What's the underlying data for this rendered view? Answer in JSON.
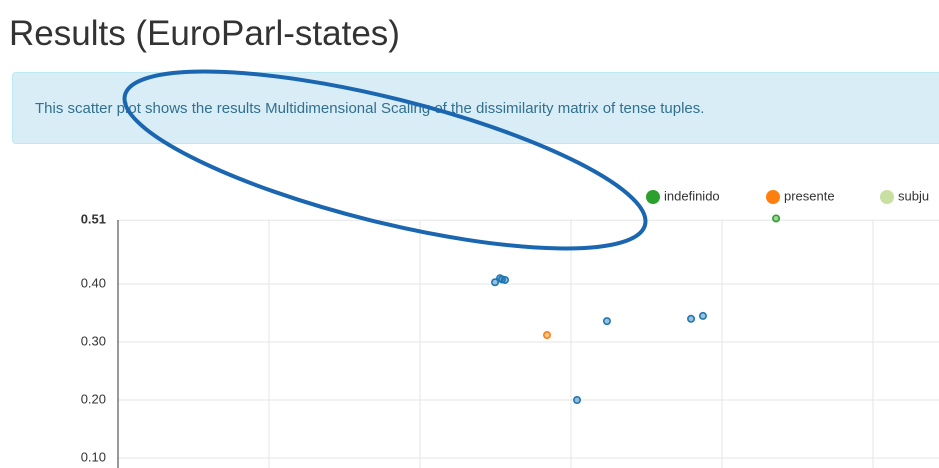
{
  "page": {
    "title": "Results (EuroParl-states)",
    "info": "This scatter plot shows the results Multidimensional Scaling of the dissimilarity matrix of tense tuples."
  },
  "chart_data": {
    "type": "scatter",
    "xlim": [
      -0.3,
      0.25
    ],
    "xticks": [
      -0.2,
      -0.1,
      0,
      0.1,
      0.2
    ],
    "ylim": [
      0.08,
      0.52
    ],
    "yticks": [
      {
        "value": 0.1,
        "label": "0.10"
      },
      {
        "value": 0.2,
        "label": "0.20"
      },
      {
        "value": 0.3,
        "label": "0.30"
      },
      {
        "value": 0.4,
        "label": "0.40"
      },
      0.51
    ],
    "grid": true,
    "legend": "top-right",
    "series": [
      {
        "color": "#1f77b4",
        "x": [
          -0.0503,
          -0.047,
          -0.0437,
          -0.0457,
          0.004,
          0.0238,
          0.0795,
          0.0874
        ],
        "values": [
          0.403,
          0.41,
          0.407,
          0.408,
          0.2,
          0.336,
          0.34,
          0.345
        ]
      },
      {
        "name": "indefinido",
        "color": "#2ca02c",
        "x": [
          0.1358
        ],
        "values": [
          0.513
        ]
      },
      {
        "name": "presente",
        "color": "#ff7f0e",
        "x": [
          -0.0159
        ],
        "values": [
          0.312
        ]
      },
      {
        "name": "subju",
        "color": "#c7dfa0",
        "x": [],
        "values": []
      }
    ]
  }
}
